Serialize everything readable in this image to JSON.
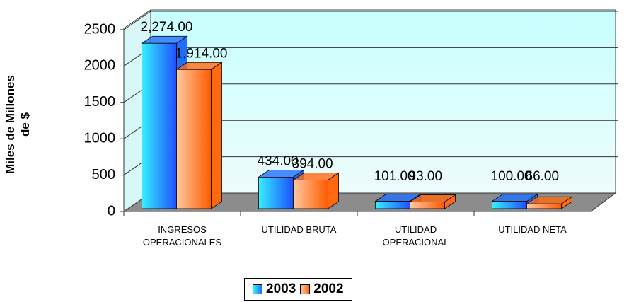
{
  "chart_data": {
    "type": "bar3d",
    "y_label": "Miles de Millones de $",
    "categories": [
      "INGRESOS OPERACIONALES",
      "UTILIDAD BRUTA",
      "UTILIDAD OPERACIONAL",
      "UTILIDAD NETA"
    ],
    "series": [
      {
        "name": "2003",
        "color": "#1f6fff",
        "values": [
          2274,
          434,
          101,
          100
        ],
        "value_labels": [
          "2,274.00",
          "434.00",
          "101.00",
          "100.00"
        ]
      },
      {
        "name": "2002",
        "color": "#ff6a10",
        "values": [
          1914,
          394,
          93,
          66
        ],
        "value_labels": [
          "1,914.00",
          "394.00",
          "93.00",
          "66.00"
        ]
      }
    ],
    "ylim": [
      0,
      2500
    ],
    "yticks": [
      0,
      500,
      1000,
      1500,
      2000,
      2500
    ],
    "grid": true,
    "legend": "bottom"
  }
}
